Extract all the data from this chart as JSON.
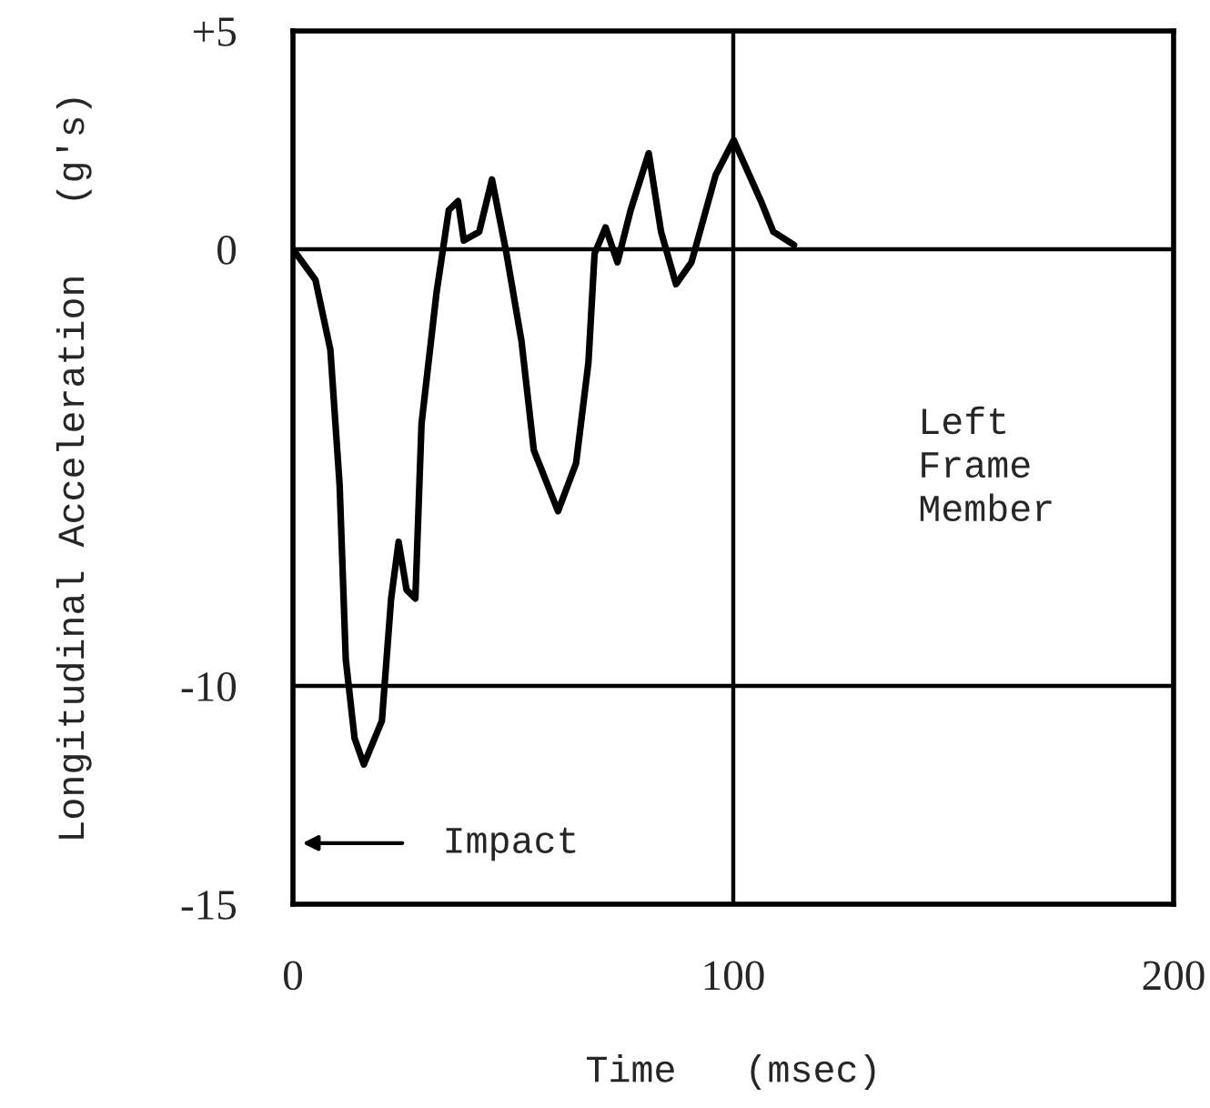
{
  "chart_data": {
    "type": "line",
    "xlabel": "Time   (msec)",
    "ylabel": "Longitudinal Acceleration   (g's)",
    "series": [
      {
        "color": "#000000",
        "x": [
          0,
          5.1,
          8.5,
          10.6,
          12,
          14,
          16.1,
          20.2,
          22.3,
          24,
          25.8,
          27.8,
          28.5,
          29.2,
          32.6,
          35.4,
          37.5,
          38.8,
          42.3,
          45.2,
          48.5,
          51.9,
          54.7,
          60.2,
          64.3,
          67.1,
          68.5,
          71,
          73.7,
          76.7,
          80.8,
          83.6,
          87,
          90.5,
          96,
          100.1,
          106.3,
          109.1,
          113.8
        ],
        "values": [
          0,
          -0.7,
          -2.3,
          -5.4,
          -9.4,
          -11.2,
          -11.8,
          -10.8,
          -8.0,
          -6.7,
          -7.8,
          -8.0,
          -6.0,
          -4.0,
          -1.0,
          0.9,
          1.1,
          0.2,
          0.4,
          1.6,
          -0.1,
          -2.1,
          -4.6,
          -6.0,
          -4.9,
          -2.6,
          -0.1,
          0.5,
          -0.3,
          0.9,
          2.2,
          0.4,
          -0.8,
          -0.3,
          1.7,
          2.5,
          1.1,
          0.4,
          0.1
        ]
      }
    ],
    "xlim": [
      0,
      200
    ],
    "xticks": [
      0,
      100,
      200
    ],
    "ylim": [
      -15,
      5
    ],
    "yticks": [
      {
        "value": 5,
        "label": "+5"
      },
      0,
      -10,
      -15
    ],
    "grid": true,
    "marker": "none",
    "line_style": "solid",
    "annotations": [
      "Impact",
      "Left\nFrame\nMember"
    ]
  }
}
